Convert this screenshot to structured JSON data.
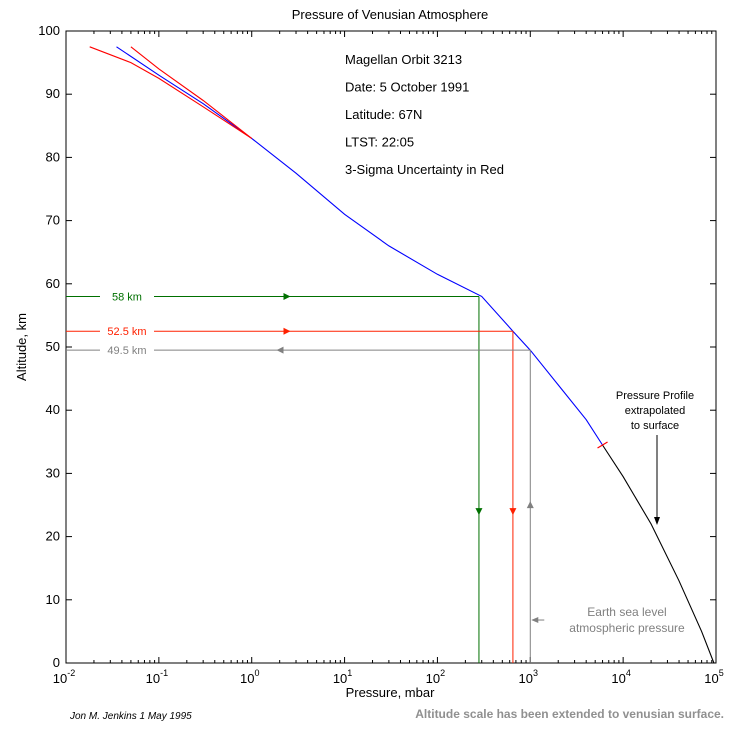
{
  "chart_data": {
    "type": "line",
    "title": "Pressure of Venusian Atmosphere",
    "xlabel": "Pressure, mbar",
    "ylabel": "Altitude, km",
    "xscale": "log",
    "xlim": [
      0.01,
      100000
    ],
    "ylim": [
      0,
      100
    ],
    "yticks": [
      0,
      10,
      20,
      30,
      40,
      50,
      60,
      70,
      80,
      90,
      100
    ],
    "yticklabels": [
      "0",
      "10",
      "20",
      "30",
      "40",
      "50",
      "60",
      "70",
      "80",
      "90",
      "100"
    ],
    "xticks": [
      0.01,
      0.1,
      1,
      10,
      100,
      1000,
      10000,
      100000
    ],
    "xticklabels": [
      {
        "base": "10",
        "exp": "-2"
      },
      {
        "base": "10",
        "exp": "-1"
      },
      {
        "base": "10",
        "exp": "0"
      },
      {
        "base": "10",
        "exp": "1"
      },
      {
        "base": "10",
        "exp": "2"
      },
      {
        "base": "10",
        "exp": "3"
      },
      {
        "base": "10",
        "exp": "4"
      },
      {
        "base": "10",
        "exp": "5"
      }
    ],
    "annotations": [
      "Magellan Orbit 3213",
      "Date: 5 October 1991",
      "Latitude: 67N",
      "LTST: 22:05",
      "3-Sigma Uncertainty in Red"
    ],
    "extrapolation_note": [
      "Pressure Profile",
      "extrapolated",
      "to surface"
    ],
    "earth_note": [
      "Earth sea level",
      "atmospheric pressure"
    ],
    "markers": [
      {
        "label": "58 km",
        "altitude": 58,
        "pressure": 280,
        "color": "#007000",
        "direction": "down"
      },
      {
        "label": "52.5 km",
        "altitude": 52.5,
        "pressure": 650,
        "color": "#ff2000",
        "direction": "down"
      },
      {
        "label": "49.5 km",
        "altitude": 49.5,
        "pressure": 1000,
        "color": "#808080",
        "direction": "up"
      }
    ],
    "series": [
      {
        "color": "#0000ff",
        "points": [
          [
            0.035,
            97.5
          ],
          [
            0.1,
            93
          ],
          [
            0.3,
            88.5
          ],
          [
            1,
            83
          ],
          [
            3,
            77.5
          ],
          [
            10,
            71
          ],
          [
            30,
            66
          ],
          [
            100,
            61.5
          ],
          [
            300,
            58
          ],
          [
            650,
            52.5
          ],
          [
            1000,
            49.5
          ],
          [
            2000,
            44
          ],
          [
            4000,
            38.5
          ],
          [
            6000,
            34.5
          ]
        ]
      },
      {
        "color": "#000000",
        "points": [
          [
            6000,
            34.5
          ],
          [
            10000,
            29.5
          ],
          [
            20000,
            22
          ],
          [
            40000,
            13
          ],
          [
            70000,
            5
          ],
          [
            95000,
            0
          ]
        ]
      },
      {
        "color": "#ff0000",
        "points": [
          [
            0.018,
            97.5
          ],
          [
            0.05,
            95
          ],
          [
            0.1,
            92.5
          ],
          [
            0.3,
            88
          ],
          [
            1,
            83
          ]
        ]
      },
      {
        "color": "#ff0000",
        "points": [
          [
            0.05,
            97.5
          ],
          [
            0.1,
            94
          ],
          [
            0.3,
            89
          ],
          [
            1,
            83
          ]
        ]
      }
    ]
  },
  "footer": {
    "author": "Jon M. Jenkins  1 May 1995",
    "note": "Altitude scale has been extended to venusian surface."
  }
}
